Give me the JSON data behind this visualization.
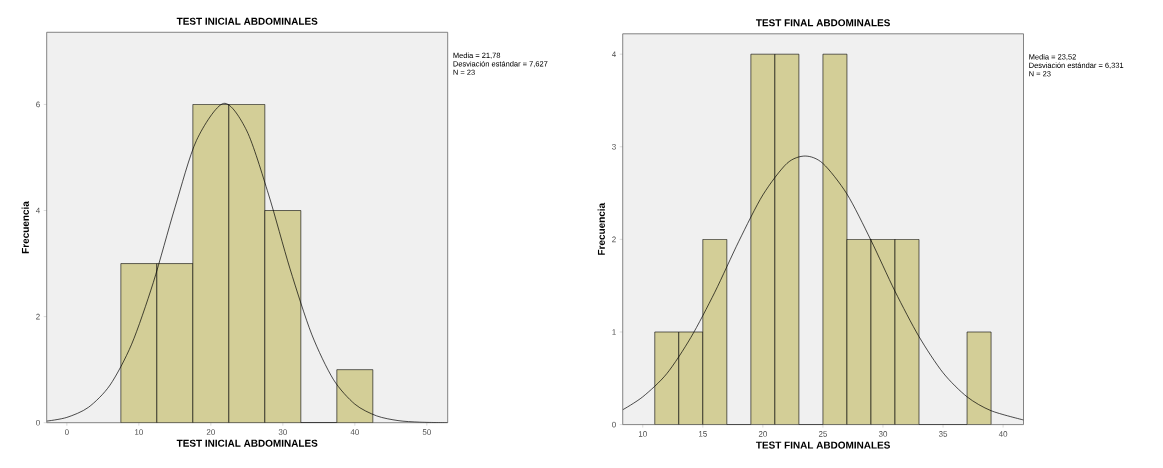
{
  "chart_data": [
    {
      "type": "histogram",
      "title": "TEST INICIAL ABDOMINALES",
      "xlabel": "TEST INICIAL ABDOMINALES",
      "ylabel": "Frecuencia",
      "xlim": [
        -2.8,
        52.9
      ],
      "ylim": [
        0,
        7.36
      ],
      "xticks": [
        0,
        10,
        20,
        30,
        40,
        50
      ],
      "yticks": [
        0,
        2,
        4,
        6
      ],
      "grid": false,
      "annotations": [
        "Media = 21,78",
        "Desviación estándar = 7,627",
        "N = 23"
      ],
      "series": [
        {
          "color": "#d3ce97",
          "bins": [
            7.5,
            12.5,
            17.5,
            22.5,
            27.5,
            32.5,
            37.5,
            42.5
          ],
          "values": [
            3,
            3,
            6,
            6,
            4,
            0,
            1
          ]
        },
        {
          "type": "line",
          "color": "#000000",
          "x": [
            -2.8,
            0,
            3,
            6,
            9,
            12,
            15,
            18,
            21.78,
            25,
            28,
            31,
            34,
            37,
            40,
            43,
            46,
            49,
            52.9
          ],
          "values": [
            0.03,
            0.1,
            0.29,
            0.71,
            1.48,
            2.64,
            4.05,
            5.32,
            6.02,
            5.5,
            4.31,
            2.9,
            1.67,
            0.82,
            0.35,
            0.13,
            0.04,
            0.01,
            0
          ]
        }
      ]
    },
    {
      "type": "histogram",
      "title": "TEST FINAL ABDOMINALES",
      "xlabel": "TEST FINAL ABDOMINALES",
      "ylabel": "Frecuencia",
      "xlim": [
        8.33,
        41.7
      ],
      "ylim": [
        0,
        4.22
      ],
      "xticks": [
        10,
        15,
        20,
        25,
        30,
        35,
        40
      ],
      "yticks": [
        0,
        1,
        2,
        3,
        4
      ],
      "grid": false,
      "annotations": [
        "Media = 23,52",
        "Desviación estándar = 6,331",
        "N = 23"
      ],
      "series": [
        {
          "color": "#d3ce97",
          "bins": [
            11,
            13,
            15,
            17,
            19,
            21,
            23,
            25,
            27,
            29,
            31,
            33,
            35,
            37,
            39
          ],
          "values": [
            1,
            1,
            2,
            0,
            4,
            4,
            0,
            4,
            2,
            2,
            2,
            0,
            0,
            1
          ]
        },
        {
          "type": "line",
          "color": "#000000",
          "x": [
            8.33,
            10,
            12,
            14,
            16,
            18,
            20,
            22,
            23.52,
            25,
            27,
            29,
            31,
            33,
            35,
            37,
            39,
            41.7
          ],
          "values": [
            0.16,
            0.3,
            0.55,
            0.94,
            1.43,
            1.98,
            2.48,
            2.82,
            2.9,
            2.82,
            2.49,
            1.99,
            1.44,
            0.95,
            0.56,
            0.3,
            0.15,
            0.05
          ]
        }
      ]
    }
  ]
}
